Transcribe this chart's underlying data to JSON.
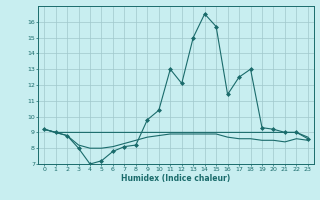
{
  "xlabel": "Humidex (Indice chaleur)",
  "background_color": "#c8eef0",
  "grid_color": "#a0c8cc",
  "line_color": "#1a6b6b",
  "xlim": [
    -0.5,
    23.5
  ],
  "ylim": [
    7,
    17
  ],
  "yticks": [
    7,
    8,
    9,
    10,
    11,
    12,
    13,
    14,
    15,
    16
  ],
  "xticks": [
    0,
    1,
    2,
    3,
    4,
    5,
    6,
    7,
    8,
    9,
    10,
    11,
    12,
    13,
    14,
    15,
    16,
    17,
    18,
    19,
    20,
    21,
    22,
    23
  ],
  "series": [
    [
      9.2,
      9.0,
      8.8,
      8.0,
      7.0,
      7.2,
      7.8,
      8.1,
      8.2,
      9.8,
      10.4,
      13.0,
      12.1,
      15.0,
      16.5,
      15.7,
      11.4,
      12.5,
      13.0,
      9.3,
      9.2,
      9.0,
      9.0,
      8.6
    ],
    [
      9.2,
      9.0,
      9.0,
      9.0,
      9.0,
      9.0,
      9.0,
      9.0,
      9.0,
      9.0,
      9.0,
      9.0,
      9.0,
      9.0,
      9.0,
      9.0,
      9.0,
      9.0,
      9.0,
      9.0,
      9.0,
      9.0,
      9.0,
      8.7
    ],
    [
      9.2,
      9.0,
      8.8,
      8.2,
      8.0,
      8.0,
      8.1,
      8.3,
      8.5,
      8.7,
      8.8,
      8.9,
      8.9,
      8.9,
      8.9,
      8.9,
      8.7,
      8.6,
      8.6,
      8.5,
      8.5,
      8.4,
      8.6,
      8.5
    ]
  ],
  "marker_series": 0,
  "marker": "D",
  "markersize": 2.0
}
